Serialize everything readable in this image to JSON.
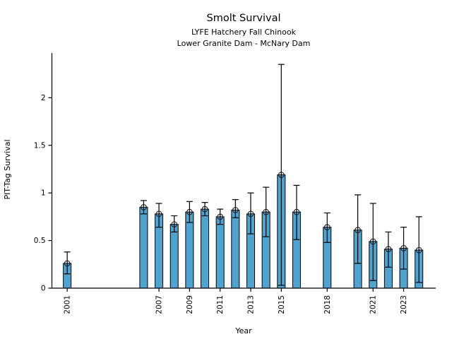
{
  "figure": {
    "background": "#ffffff"
  },
  "chart_data": {
    "type": "bar",
    "title": "Smolt Survival",
    "subtitle1": "LYFE Hatchery Fall Chinook",
    "subtitle2": "Lower Granite Dam - McNary Dam",
    "xlabel": "Year",
    "ylabel": "PIT-Tag Survival",
    "bar_color": "#4fa3d1",
    "bar_edge_color": "#000000",
    "error_bar_color": "#000000",
    "marker": "open-circle",
    "grid": false,
    "legend": "none",
    "xlim": [
      2000,
      2025.1
    ],
    "ylim": [
      0,
      2.47
    ],
    "yticks": [
      0,
      0.5,
      1,
      1.5,
      2
    ],
    "ytick_labels": [
      "0",
      "0.5",
      "1",
      "1.5",
      "2"
    ],
    "xticks": [
      2001,
      2007,
      2009,
      2011,
      2013,
      2015,
      2018,
      2021,
      2023
    ],
    "points": [
      {
        "year": 2001,
        "value": 0.26,
        "err_low": 0.15,
        "err_high": 0.38
      },
      {
        "year": 2006,
        "value": 0.85,
        "err_low": 0.78,
        "err_high": 0.92
      },
      {
        "year": 2007,
        "value": 0.78,
        "err_low": 0.64,
        "err_high": 0.89
      },
      {
        "year": 2008,
        "value": 0.67,
        "err_low": 0.59,
        "err_high": 0.76
      },
      {
        "year": 2009,
        "value": 0.8,
        "err_low": 0.69,
        "err_high": 0.91
      },
      {
        "year": 2010,
        "value": 0.83,
        "err_low": 0.76,
        "err_high": 0.9
      },
      {
        "year": 2011,
        "value": 0.75,
        "err_low": 0.67,
        "err_high": 0.83
      },
      {
        "year": 2012,
        "value": 0.82,
        "err_low": 0.74,
        "err_high": 0.93
      },
      {
        "year": 2013,
        "value": 0.78,
        "err_low": 0.57,
        "err_high": 1.0
      },
      {
        "year": 2014,
        "value": 0.8,
        "err_low": 0.54,
        "err_high": 1.06
      },
      {
        "year": 2015,
        "value": 1.19,
        "err_low": 0.03,
        "err_high": 2.35
      },
      {
        "year": 2016,
        "value": 0.8,
        "err_low": 0.51,
        "err_high": 1.08
      },
      {
        "year": 2018,
        "value": 0.64,
        "err_low": 0.48,
        "err_high": 0.79
      },
      {
        "year": 2020,
        "value": 0.61,
        "err_low": 0.26,
        "err_high": 0.98
      },
      {
        "year": 2021,
        "value": 0.49,
        "err_low": 0.08,
        "err_high": 0.89
      },
      {
        "year": 2022,
        "value": 0.41,
        "err_low": 0.22,
        "err_high": 0.59
      },
      {
        "year": 2023,
        "value": 0.42,
        "err_low": 0.2,
        "err_high": 0.64
      },
      {
        "year": 2024,
        "value": 0.4,
        "err_low": 0.06,
        "err_high": 0.75
      }
    ]
  }
}
